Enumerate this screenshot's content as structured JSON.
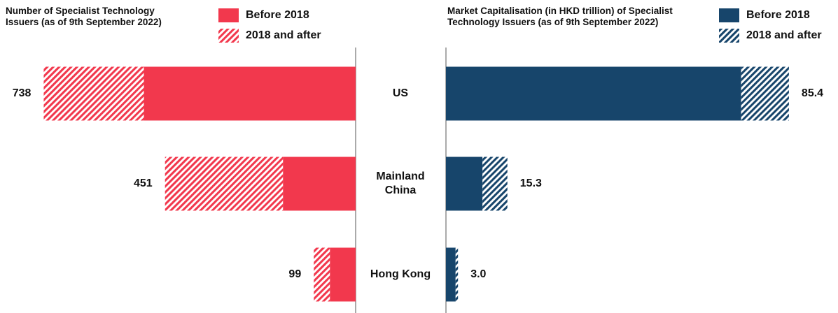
{
  "chart_data": [
    {
      "type": "bar",
      "orientation": "horizontal",
      "stacked": true,
      "x_reversed": true,
      "title": "Number of Specialist Technology Issuers (as of 9th September 2022)",
      "categories": [
        "US",
        "Mainland China",
        "Hong Kong"
      ],
      "series": [
        {
          "name": "Before 2018",
          "color": "#f2384d",
          "values": [
            501,
            172,
            61
          ]
        },
        {
          "name": "2018 and after",
          "color": "#f2384d",
          "hatched": true,
          "values": [
            237,
            279,
            38
          ]
        }
      ],
      "totals": [
        738,
        451,
        99
      ],
      "xlim": [
        0,
        800
      ]
    },
    {
      "type": "bar",
      "orientation": "horizontal",
      "stacked": true,
      "x_reversed": false,
      "title": "Market Capitalisation (in HKD trillion) of Specialist Technology Issuers (as of 9th September 2022)",
      "series": [
        {
          "name": "Before 2018",
          "color": "#17456b",
          "values": [
            73.5,
            9.1,
            2.4
          ]
        },
        {
          "name": "2018 and after",
          "color": "#17456b",
          "hatched": true,
          "values": [
            11.9,
            6.2,
            0.6
          ]
        }
      ],
      "totals": [
        85.4,
        15.3,
        3
      ],
      "total_labels": [
        "85.4",
        "15.3",
        "3.0"
      ],
      "xlim": [
        0,
        95
      ]
    }
  ]
}
